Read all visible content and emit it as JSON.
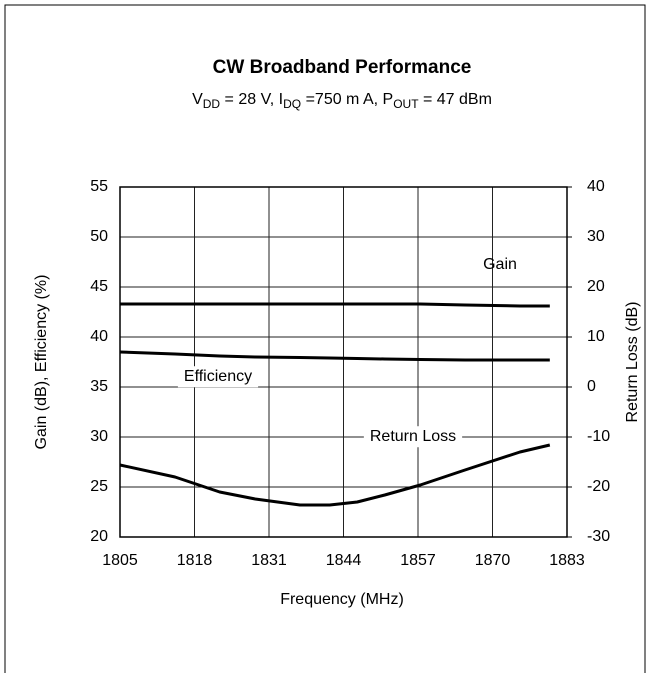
{
  "chart_data": {
    "type": "line",
    "title": "CW Broadband Performance",
    "subtitle": [
      "V",
      "DD",
      " = 28 V, I",
      "DQ",
      " =750 m A, P",
      "OUT",
      " = 47 dBm"
    ],
    "x_label": "Frequency (MHz)",
    "y_label": "Gain (dB), Efficiency (%)",
    "y2_label": "Return Loss (dB)",
    "x": [
      1805,
      1814.6,
      1822.4,
      1828.6,
      1836.4,
      1841.6,
      1846.4,
      1851.2,
      1857.4,
      1865.2,
      1874.8,
      1880
    ],
    "series": [
      {
        "name": "Gain",
        "color": "#000000",
        "values": [
          43.3,
          43.3,
          43.3,
          43.3,
          43.3,
          43.3,
          43.3,
          43.3,
          43.3,
          43.2,
          43.1,
          43.1
        ]
      },
      {
        "name": "Efficiency",
        "color": "#000000",
        "values": [
          38.5,
          38.3,
          38.1,
          38.0,
          37.95,
          37.9,
          37.85,
          37.8,
          37.75,
          37.7,
          37.7,
          37.7
        ]
      },
      {
        "name": "Return Loss",
        "color": "#000000",
        "axis": "y2",
        "values": [
          -15.6,
          -18,
          -21,
          -22.4,
          -23.6,
          -23.6,
          -23,
          -21.6,
          -19.6,
          -16.6,
          -13,
          -11.6
        ]
      }
    ],
    "xlim": [
      1805,
      1883
    ],
    "xticks": [
      1805,
      1818,
      1831,
      1844,
      1857,
      1870,
      1883
    ],
    "ylim": [
      20,
      55
    ],
    "yticks": [
      20,
      25,
      30,
      35,
      40,
      45,
      50,
      55
    ],
    "y2lim": [
      -30,
      40
    ],
    "y2ticks": [
      -30,
      -20,
      -10,
      0,
      10,
      20,
      30,
      40
    ],
    "grid": true
  }
}
